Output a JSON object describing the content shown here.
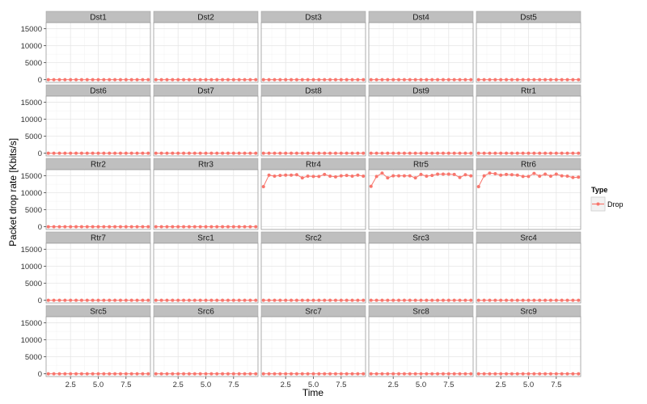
{
  "chart_data": {
    "type": "line",
    "layout": "facet_wrap",
    "ncol": 5,
    "xlabel": "Time",
    "ylabel": "Packet drop rate [Kbits/s]",
    "xlim": [
      0.3,
      9.7
    ],
    "ylim": [
      -800,
      16800
    ],
    "x_ticks": [
      2.5,
      5.0,
      7.5
    ],
    "x_tick_labels": [
      "2.5",
      "5.0",
      "7.5"
    ],
    "y_ticks": [
      0,
      5000,
      10000,
      15000
    ],
    "y_tick_labels": [
      "0",
      "5000",
      "10000",
      "15000"
    ],
    "grid": true,
    "legend": {
      "title": "Type",
      "entries": [
        "Drop"
      ],
      "position": "right"
    },
    "series_color": "#F8766D",
    "x": [
      0.5,
      1.0,
      1.5,
      2.0,
      2.5,
      3.0,
      3.5,
      4.0,
      4.5,
      5.0,
      5.5,
      6.0,
      6.5,
      7.0,
      7.5,
      8.0,
      8.5,
      9.0,
      9.5
    ],
    "panels": [
      {
        "name": "Dst1",
        "values": [
          0,
          0,
          0,
          0,
          0,
          0,
          0,
          0,
          0,
          0,
          0,
          0,
          0,
          0,
          0,
          0,
          0,
          0,
          0
        ]
      },
      {
        "name": "Dst2",
        "values": [
          0,
          0,
          0,
          0,
          0,
          0,
          0,
          0,
          0,
          0,
          0,
          0,
          0,
          0,
          0,
          0,
          0,
          0,
          0
        ]
      },
      {
        "name": "Dst3",
        "values": [
          0,
          0,
          0,
          0,
          0,
          0,
          0,
          0,
          0,
          0,
          0,
          0,
          0,
          0,
          0,
          0,
          0,
          0,
          0
        ]
      },
      {
        "name": "Dst4",
        "values": [
          0,
          0,
          0,
          0,
          0,
          0,
          0,
          0,
          0,
          0,
          0,
          0,
          0,
          0,
          0,
          0,
          0,
          0,
          0
        ]
      },
      {
        "name": "Dst5",
        "values": [
          0,
          0,
          0,
          0,
          0,
          0,
          0,
          0,
          0,
          0,
          0,
          0,
          0,
          0,
          0,
          0,
          0,
          0,
          0
        ]
      },
      {
        "name": "Dst6",
        "values": [
          0,
          0,
          0,
          0,
          0,
          0,
          0,
          0,
          0,
          0,
          0,
          0,
          0,
          0,
          0,
          0,
          0,
          0,
          0
        ]
      },
      {
        "name": "Dst7",
        "values": [
          0,
          0,
          0,
          0,
          0,
          0,
          0,
          0,
          0,
          0,
          0,
          0,
          0,
          0,
          0,
          0,
          0,
          0,
          0
        ]
      },
      {
        "name": "Dst8",
        "values": [
          0,
          0,
          0,
          0,
          0,
          0,
          0,
          0,
          0,
          0,
          0,
          0,
          0,
          0,
          0,
          0,
          0,
          0,
          0
        ]
      },
      {
        "name": "Dst9",
        "values": [
          0,
          0,
          0,
          0,
          0,
          0,
          0,
          0,
          0,
          0,
          0,
          0,
          0,
          0,
          0,
          0,
          0,
          0,
          0
        ]
      },
      {
        "name": "Rtr1",
        "values": [
          0,
          0,
          0,
          0,
          0,
          0,
          0,
          0,
          0,
          0,
          0,
          0,
          0,
          0,
          0,
          0,
          0,
          0,
          0
        ]
      },
      {
        "name": "Rtr2",
        "values": [
          0,
          0,
          0,
          0,
          0,
          0,
          0,
          0,
          0,
          0,
          0,
          0,
          0,
          0,
          0,
          0,
          0,
          0,
          0
        ]
      },
      {
        "name": "Rtr3",
        "values": [
          0,
          0,
          0,
          0,
          0,
          0,
          0,
          0,
          0,
          0,
          0,
          0,
          0,
          0,
          0,
          0,
          0,
          0,
          0
        ]
      },
      {
        "name": "Rtr4",
        "values": [
          11800,
          15200,
          14900,
          15100,
          15200,
          15200,
          15300,
          14400,
          14900,
          14800,
          14800,
          15400,
          14900,
          14700,
          15000,
          15100,
          14900,
          15200,
          14900
        ]
      },
      {
        "name": "Rtr5",
        "values": [
          11900,
          14800,
          15800,
          14400,
          15000,
          15000,
          15000,
          15000,
          14400,
          15400,
          14900,
          15100,
          15500,
          15500,
          15500,
          15400,
          14500,
          15300,
          15000
        ]
      },
      {
        "name": "Rtr6",
        "values": [
          11800,
          15000,
          15800,
          15600,
          15200,
          15400,
          15300,
          15200,
          14800,
          14800,
          15700,
          14900,
          15500,
          14900,
          15500,
          15000,
          14900,
          14500,
          14600
        ]
      },
      {
        "name": "Rtr7",
        "values": [
          0,
          0,
          0,
          0,
          0,
          0,
          0,
          0,
          0,
          0,
          0,
          0,
          0,
          0,
          0,
          0,
          0,
          0,
          0
        ]
      },
      {
        "name": "Src1",
        "values": [
          0,
          0,
          0,
          0,
          0,
          0,
          0,
          0,
          0,
          0,
          0,
          0,
          0,
          0,
          0,
          0,
          0,
          0,
          0
        ]
      },
      {
        "name": "Src2",
        "values": [
          0,
          0,
          0,
          0,
          0,
          0,
          0,
          0,
          0,
          0,
          0,
          0,
          0,
          0,
          0,
          0,
          0,
          0,
          0
        ]
      },
      {
        "name": "Src3",
        "values": [
          0,
          0,
          0,
          0,
          0,
          0,
          0,
          0,
          0,
          0,
          0,
          0,
          0,
          0,
          0,
          0,
          0,
          0,
          0
        ]
      },
      {
        "name": "Src4",
        "values": [
          0,
          0,
          0,
          0,
          0,
          0,
          0,
          0,
          0,
          0,
          0,
          0,
          0,
          0,
          0,
          0,
          0,
          0,
          0
        ]
      },
      {
        "name": "Src5",
        "values": [
          0,
          0,
          0,
          0,
          0,
          0,
          0,
          0,
          0,
          0,
          0,
          0,
          0,
          0,
          0,
          0,
          0,
          0,
          0
        ]
      },
      {
        "name": "Src6",
        "values": [
          0,
          0,
          0,
          0,
          0,
          0,
          0,
          0,
          0,
          0,
          0,
          0,
          0,
          0,
          0,
          0,
          0,
          0,
          0
        ]
      },
      {
        "name": "Src7",
        "values": [
          0,
          0,
          0,
          0,
          0,
          0,
          0,
          0,
          0,
          0,
          0,
          0,
          0,
          0,
          0,
          0,
          0,
          0,
          0
        ]
      },
      {
        "name": "Src8",
        "values": [
          0,
          0,
          0,
          0,
          0,
          0,
          0,
          0,
          0,
          0,
          0,
          0,
          0,
          0,
          0,
          0,
          0,
          0,
          0
        ]
      },
      {
        "name": "Src9",
        "values": [
          0,
          0,
          0,
          0,
          0,
          0,
          0,
          0,
          0,
          0,
          0,
          0,
          0,
          0,
          0,
          0,
          0,
          0,
          0
        ]
      }
    ]
  }
}
